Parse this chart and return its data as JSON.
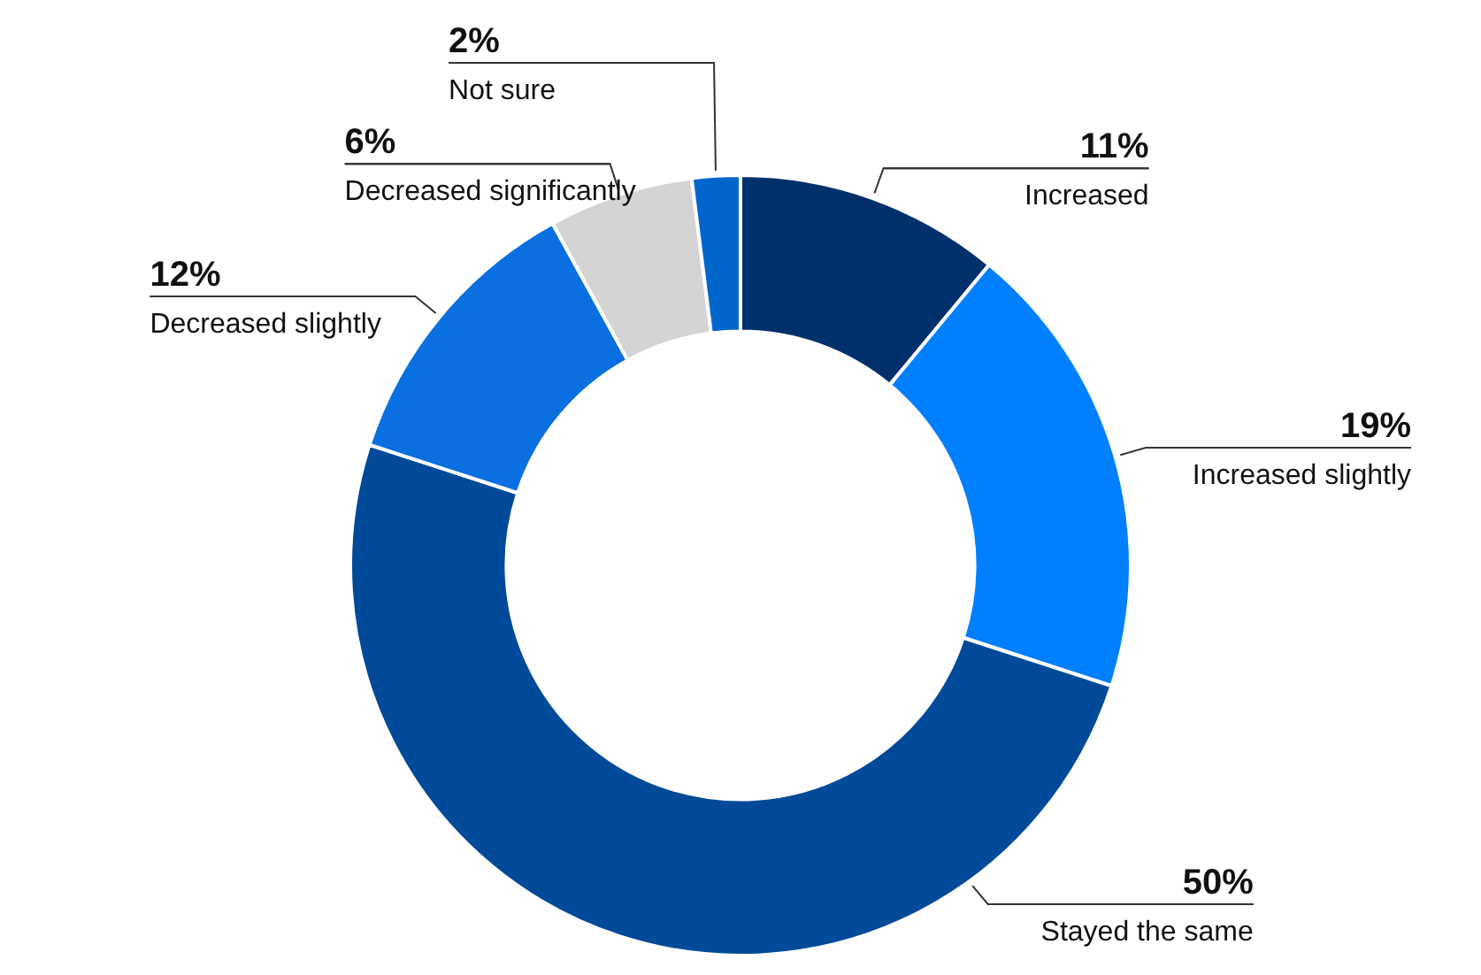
{
  "chart_data": {
    "type": "donut",
    "categories": [
      "Increased",
      "Increased slightly",
      "Stayed the same",
      "Decreased slightly",
      "Decreased significantly",
      "Not sure"
    ],
    "values": [
      11,
      19,
      50,
      12,
      6,
      2
    ],
    "colors": [
      "#00306b",
      "#0080ff",
      "#004a99",
      "#0a6fe0",
      "#d4d4d4",
      "#0066cc"
    ],
    "value_labels": [
      "11%",
      "19%",
      "50%",
      "12%",
      "6%",
      "2%"
    ],
    "legend": false
  }
}
